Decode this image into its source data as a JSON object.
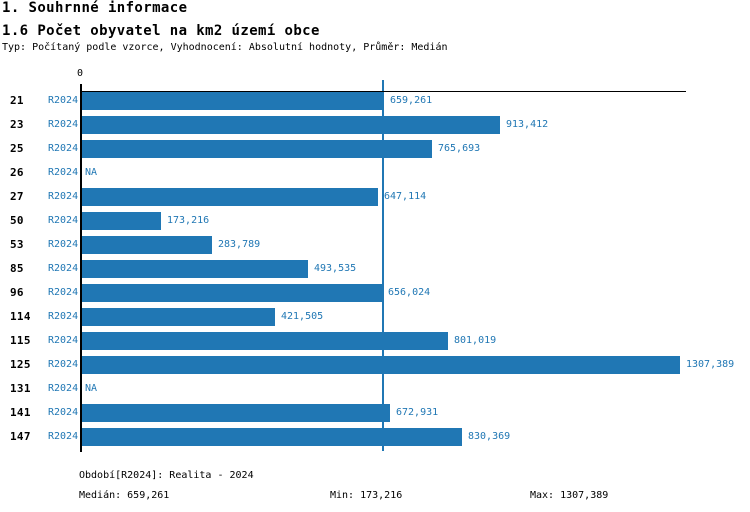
{
  "header": {
    "section_title": "1. Souhrnné informace",
    "chart_title": "1.6 Počet obyvatel na km2 území obce",
    "subtitle": "Typ: Počítaný podle vzorce, Vyhodnocení: Absolutní hodnoty, Průměr: Medián"
  },
  "chart_data": {
    "type": "bar",
    "orientation": "horizontal",
    "title": "1.6 Počet obyvatel na km2 území obce",
    "categories": [
      "21",
      "23",
      "25",
      "26",
      "27",
      "50",
      "53",
      "85",
      "96",
      "114",
      "115",
      "125",
      "131",
      "141",
      "147"
    ],
    "series": [
      {
        "name": "R2024",
        "values": [
          659.261,
          913.412,
          765.693,
          null,
          647.114,
          173.216,
          283.789,
          493.535,
          656.024,
          421.505,
          801.019,
          1307.389,
          null,
          672.931,
          830.369
        ],
        "value_labels": [
          "659,261",
          "913,412",
          "765,693",
          "NA",
          "647,114",
          "173,216",
          "283,789",
          "493,535",
          "656,024",
          "421,505",
          "801,019",
          "1307,389",
          "NA",
          "672,931",
          "830,369"
        ]
      }
    ],
    "row_period_label": "R2024",
    "xlim": [
      0,
      1318
    ],
    "x_zero_tick_label": "0",
    "grid": false,
    "legend": false,
    "median_value": 659.261,
    "colors": {
      "bar": "#2077b4",
      "median_line": "#2077b4",
      "axis": "#000000",
      "label_text": "#2077b4",
      "category_text": "#000000"
    }
  },
  "footer": {
    "period": "Období[R2024]: Realita - 2024",
    "median": "Medián: 659,261",
    "min": "Min: 173,216",
    "max": "Max: 1307,389"
  }
}
